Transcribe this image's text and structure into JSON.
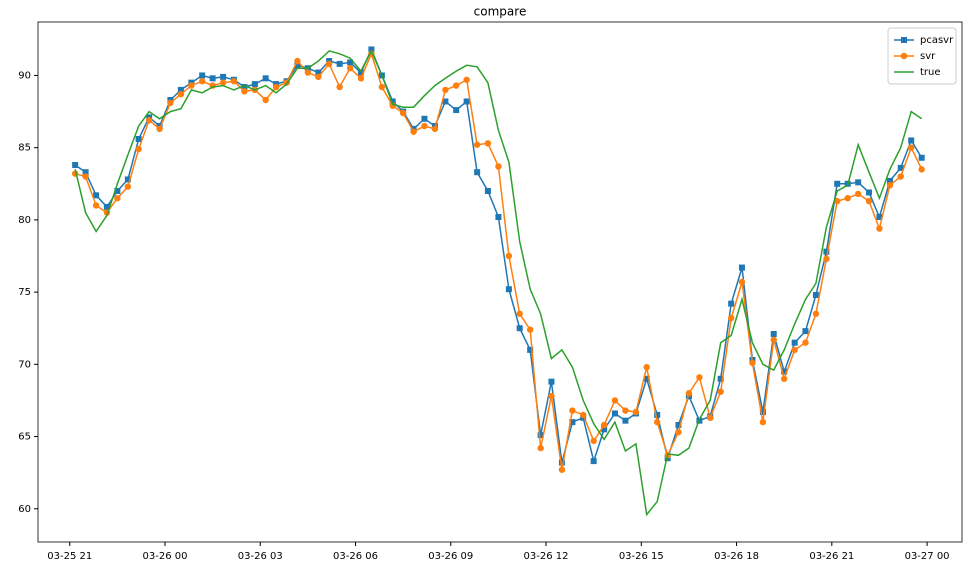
{
  "chart_data": {
    "type": "line",
    "title": "compare",
    "x": [
      -2.83,
      -2.5,
      -2.17,
      -1.83,
      -1.5,
      -1.17,
      -0.83,
      -0.5,
      -0.17,
      0.17,
      0.5,
      0.83,
      1.17,
      1.5,
      1.83,
      2.17,
      2.5,
      2.83,
      3.17,
      3.5,
      3.83,
      4.17,
      4.5,
      4.83,
      5.17,
      5.5,
      5.83,
      6.17,
      6.5,
      6.83,
      7.17,
      7.5,
      7.83,
      8.17,
      8.5,
      8.83,
      9.17,
      9.5,
      9.83,
      10.17,
      10.5,
      10.83,
      11.17,
      11.5,
      11.83,
      12.17,
      12.5,
      12.83,
      13.17,
      13.5,
      13.83,
      14.17,
      14.5,
      14.83,
      15.17,
      15.5,
      15.83,
      16.17,
      16.5,
      16.83,
      17.17,
      17.5,
      17.83,
      18.17,
      18.5,
      18.83,
      19.17,
      19.5,
      19.83,
      20.17,
      20.5,
      20.83,
      21.17,
      21.5,
      21.83,
      22.17,
      22.5,
      22.83,
      23.17,
      23.5,
      23.83
    ],
    "series": [
      {
        "name": "pcasvr",
        "color": "#1f77b4",
        "marker": "square",
        "values": [
          83.8,
          83.3,
          81.7,
          80.9,
          82.0,
          82.8,
          85.6,
          87.1,
          86.5,
          88.3,
          89.0,
          89.5,
          90.0,
          89.8,
          89.9,
          89.7,
          89.2,
          89.4,
          89.8,
          89.4,
          89.6,
          90.7,
          90.5,
          90.2,
          91.0,
          90.8,
          90.9,
          90.2,
          91.8,
          90.0,
          88.2,
          87.5,
          86.3,
          87.0,
          86.5,
          88.2,
          87.6,
          88.2,
          83.3,
          82.0,
          80.2,
          75.2,
          72.5,
          71.0,
          65.1,
          68.8,
          63.2,
          66.0,
          66.3,
          63.3,
          65.5,
          66.6,
          66.1,
          66.6,
          69.0,
          66.5,
          63.5,
          65.8,
          67.8,
          66.1,
          66.4,
          69.0,
          74.2,
          76.7,
          70.3,
          66.7,
          72.1,
          69.5,
          71.5,
          72.3,
          74.8,
          77.8,
          82.5,
          82.5,
          82.6,
          81.9,
          80.2,
          82.7,
          83.6,
          85.5,
          84.3
        ]
      },
      {
        "name": "svr",
        "color": "#ff7f0e",
        "marker": "circle",
        "values": [
          83.2,
          83.0,
          81.0,
          80.5,
          81.5,
          82.3,
          84.9,
          86.9,
          86.3,
          88.1,
          88.7,
          89.3,
          89.6,
          89.3,
          89.5,
          89.6,
          88.9,
          89.0,
          88.3,
          89.2,
          89.5,
          91.0,
          90.2,
          89.9,
          90.8,
          89.2,
          90.5,
          89.8,
          91.5,
          89.2,
          87.9,
          87.4,
          86.1,
          86.5,
          86.3,
          89.0,
          89.3,
          89.7,
          85.2,
          85.3,
          83.7,
          77.5,
          73.5,
          72.4,
          64.2,
          67.8,
          62.7,
          66.8,
          66.5,
          64.7,
          65.8,
          67.5,
          66.8,
          66.7,
          69.8,
          66.0,
          63.7,
          65.3,
          68.0,
          69.1,
          66.3,
          68.1,
          73.2,
          75.7,
          70.1,
          66.0,
          71.7,
          69.0,
          71.0,
          71.5,
          73.5,
          77.3,
          81.3,
          81.5,
          81.8,
          81.3,
          79.4,
          82.4,
          83.0,
          85.0,
          83.5
        ]
      },
      {
        "name": "true",
        "color": "#2ca02c",
        "marker": "none",
        "values": [
          83.5,
          80.5,
          79.2,
          80.3,
          82.5,
          84.5,
          86.5,
          87.5,
          87.0,
          87.5,
          87.7,
          89.0,
          88.8,
          89.2,
          89.3,
          89.0,
          89.3,
          89.0,
          89.3,
          88.8,
          89.4,
          90.5,
          90.5,
          91.0,
          91.7,
          91.5,
          91.2,
          90.3,
          91.7,
          90.0,
          88.0,
          87.8,
          87.8,
          88.6,
          89.3,
          89.8,
          90.3,
          90.7,
          90.6,
          89.5,
          86.2,
          84.0,
          78.5,
          75.2,
          73.5,
          70.4,
          71.0,
          69.8,
          67.5,
          65.9,
          64.8,
          66.0,
          64.0,
          64.5,
          59.6,
          60.5,
          63.8,
          63.7,
          64.2,
          66.2,
          67.5,
          71.5,
          72.0,
          74.5,
          71.5,
          70.0,
          69.6,
          71.0,
          72.8,
          74.5,
          75.6,
          79.5,
          82.0,
          82.4,
          85.2,
          83.3,
          81.5,
          83.5,
          85.0,
          87.5,
          87.0
        ]
      }
    ],
    "xlim": [
      -4.0,
      25.1
    ],
    "ylim": [
      57.7,
      93.7
    ],
    "xticks": [
      {
        "value": -3,
        "label": "03-25 21"
      },
      {
        "value": 0,
        "label": "03-26 00"
      },
      {
        "value": 3,
        "label": "03-26 03"
      },
      {
        "value": 6,
        "label": "03-26 06"
      },
      {
        "value": 9,
        "label": "03-26 09"
      },
      {
        "value": 12,
        "label": "03-26 12"
      },
      {
        "value": 15,
        "label": "03-26 15"
      },
      {
        "value": 18,
        "label": "03-26 18"
      },
      {
        "value": 21,
        "label": "03-26 21"
      },
      {
        "value": 24,
        "label": "03-27 00"
      }
    ],
    "yticks": [
      60,
      65,
      70,
      75,
      80,
      85,
      90
    ],
    "legend": "upper right"
  }
}
